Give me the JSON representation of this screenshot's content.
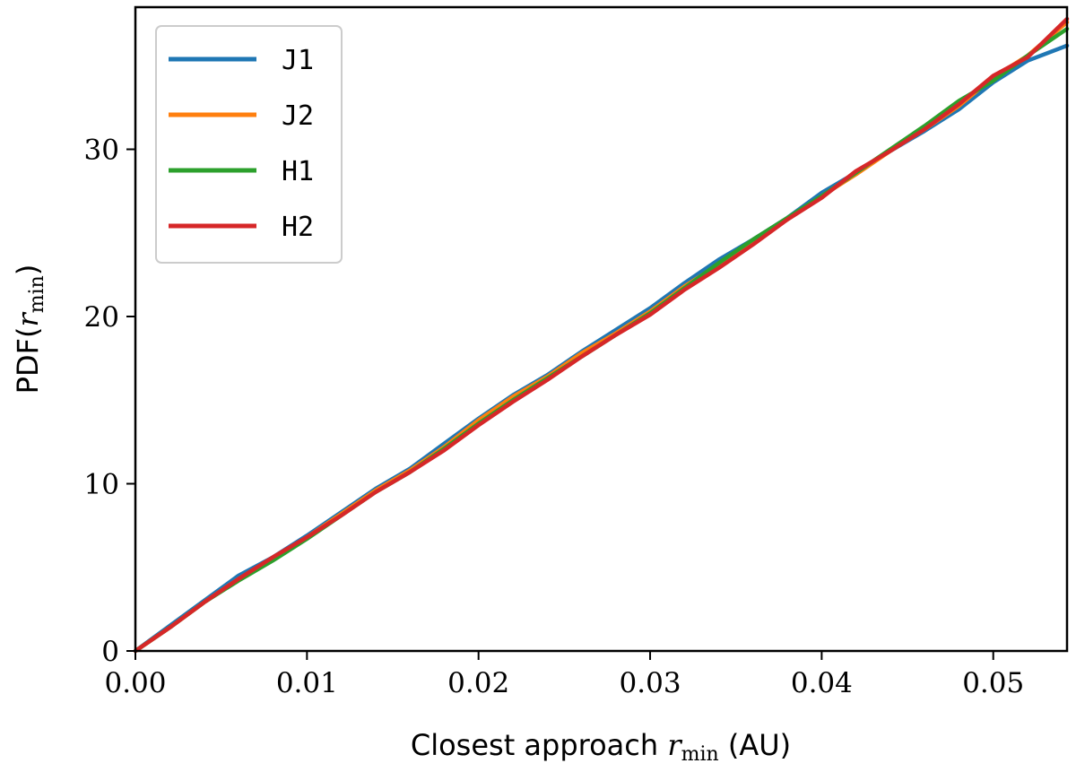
{
  "chart_data": {
    "type": "line",
    "title": "",
    "xlabel_prefix": "Closest approach ",
    "xlabel_var": "r",
    "xlabel_sub": "min",
    "xlabel_suffix": " (AU)",
    "ylabel_prefix": "PDF(",
    "ylabel_var": "r",
    "ylabel_sub": "min",
    "ylabel_suffix": ")",
    "xlim": [
      0.0,
      0.0543
    ],
    "ylim": [
      0,
      38.5
    ],
    "xticks": [
      0.0,
      0.01,
      0.02,
      0.03,
      0.04,
      0.05
    ],
    "xtick_labels": [
      "0.00",
      "0.01",
      "0.02",
      "0.03",
      "0.04",
      "0.05"
    ],
    "yticks": [
      0,
      10,
      20,
      30
    ],
    "ytick_labels": [
      "0",
      "10",
      "20",
      "30"
    ],
    "grid": false,
    "legend_position": "top-left",
    "x": [
      0.0,
      0.002,
      0.004,
      0.006,
      0.008,
      0.01,
      0.012,
      0.014,
      0.016,
      0.018,
      0.02,
      0.022,
      0.024,
      0.026,
      0.028,
      0.03,
      0.032,
      0.034,
      0.036,
      0.038,
      0.04,
      0.042,
      0.044,
      0.046,
      0.048,
      0.05,
      0.052,
      0.0543
    ],
    "series": [
      {
        "name": "J1",
        "color": "#1f77b4",
        "values": [
          0.0,
          1.5,
          3.0,
          4.5,
          5.6,
          6.9,
          8.3,
          9.7,
          10.9,
          12.4,
          13.9,
          15.3,
          16.5,
          17.9,
          19.2,
          20.5,
          22.0,
          23.4,
          24.6,
          25.9,
          27.4,
          28.6,
          29.9,
          31.1,
          32.4,
          34.0,
          35.3,
          36.2
        ]
      },
      {
        "name": "J2",
        "color": "#ff7f0e",
        "values": [
          0.0,
          1.4,
          2.9,
          4.3,
          5.5,
          6.8,
          8.2,
          9.6,
          10.8,
          12.2,
          13.8,
          15.2,
          16.4,
          17.8,
          19.0,
          20.3,
          21.8,
          23.1,
          24.5,
          25.8,
          27.2,
          28.5,
          29.9,
          31.2,
          32.6,
          34.3,
          35.6,
          37.6
        ]
      },
      {
        "name": "H1",
        "color": "#2ca02c",
        "values": [
          0.0,
          1.4,
          2.9,
          4.2,
          5.4,
          6.7,
          8.1,
          9.5,
          10.7,
          12.1,
          13.6,
          15.0,
          16.3,
          17.6,
          18.9,
          20.2,
          21.7,
          23.2,
          24.6,
          25.9,
          27.2,
          28.6,
          30.0,
          31.4,
          32.9,
          34.1,
          35.6,
          37.2
        ]
      },
      {
        "name": "H2",
        "color": "#d62728",
        "values": [
          0.0,
          1.4,
          2.9,
          4.3,
          5.6,
          6.8,
          8.1,
          9.5,
          10.7,
          12.0,
          13.5,
          14.9,
          16.2,
          17.6,
          18.9,
          20.1,
          21.6,
          22.9,
          24.3,
          25.8,
          27.1,
          28.7,
          29.9,
          31.2,
          32.7,
          34.4,
          35.5,
          37.8
        ]
      }
    ]
  }
}
